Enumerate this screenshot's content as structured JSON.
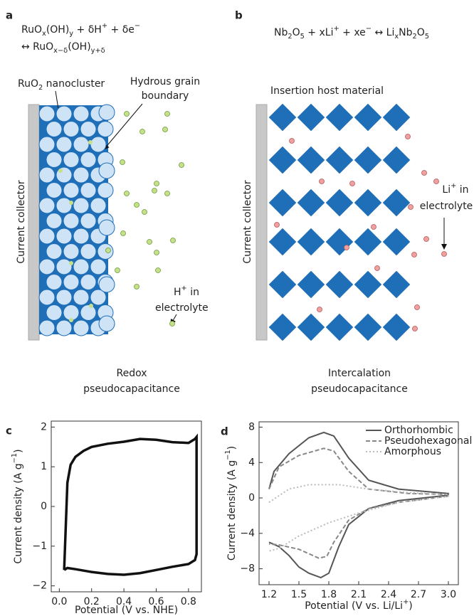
{
  "diagrams": {
    "a": {
      "panel_label": "a",
      "formula": [
        [
          {
            "t": "RuO"
          },
          {
            "sub": "x"
          },
          {
            "t": "(OH)"
          },
          {
            "sub": "y"
          },
          {
            "t": " + δH"
          },
          {
            "sup": "+"
          },
          {
            "t": " + δe"
          },
          {
            "sup": "−"
          }
        ],
        [
          {
            "t": "↔ RuO"
          },
          {
            "sub": "x−δ"
          },
          {
            "t": "(OH)"
          },
          {
            "sub": "y+δ"
          }
        ]
      ],
      "nanocluster_label": [
        {
          "t": "RuO"
        },
        {
          "sub": "2"
        },
        {
          "t": " nanocluster"
        }
      ],
      "grain_label": [
        "Hydrous grain",
        "boundary"
      ],
      "collector_label": "Current collector",
      "ion_label": [
        [
          {
            "t": "H"
          },
          {
            "sup": "+"
          },
          {
            "t": " in"
          }
        ],
        [
          {
            "t": "electrolyte"
          }
        ]
      ],
      "caption": [
        "Redox",
        "pseudocapacitance"
      ]
    },
    "b": {
      "panel_label": "b",
      "formula": [
        [
          {
            "t": "Nb"
          },
          {
            "sub": "2"
          },
          {
            "t": "O"
          },
          {
            "sub": "5"
          },
          {
            "t": " + xLi"
          },
          {
            "sup": "+"
          },
          {
            "t": " + xe"
          },
          {
            "sup": "−"
          },
          {
            "t": " ↔ Li"
          },
          {
            "sub": "x"
          },
          {
            "t": "Nb"
          },
          {
            "sub": "2"
          },
          {
            "t": "O"
          },
          {
            "sub": "5"
          }
        ]
      ],
      "host_label": "Insertion host material",
      "collector_label": "Current collector",
      "ion_label": [
        [
          {
            "t": "Li"
          },
          {
            "sup": "+"
          },
          {
            "t": " in"
          }
        ],
        [
          {
            "t": "electrolyte"
          }
        ]
      ],
      "caption": [
        "Intercalation",
        "pseudocapacitance"
      ]
    }
  },
  "chart_data": [
    {
      "type": "line",
      "panel_label": "c",
      "xlabel": [
        {
          "t": "Potential (V vs. NHE)"
        }
      ],
      "ylabel": [
        {
          "t": "Current density (A g"
        },
        {
          "sup": "−1"
        },
        {
          "t": ")"
        }
      ],
      "xlim": [
        -0.05,
        0.88
      ],
      "ylim": [
        -2.15,
        2.15
      ],
      "xticks": [
        {
          "value": 0,
          "label": "0.0"
        },
        0.2,
        0.4,
        0.6,
        0.8
      ],
      "yticks": [
        {
          "value": -2,
          "label": "−2"
        },
        {
          "value": -1,
          "label": "−1"
        },
        0,
        1,
        2
      ],
      "grid": false,
      "series": [
        {
          "color": "#111111",
          "dash": "solid",
          "x": [
            0.03,
            0.04,
            0.05,
            0.07,
            0.1,
            0.15,
            0.2,
            0.3,
            0.4,
            0.5,
            0.6,
            0.7,
            0.8,
            0.84,
            0.85,
            0.85,
            0.84,
            0.8,
            0.7,
            0.6,
            0.5,
            0.4,
            0.3,
            0.2,
            0.1,
            0.05,
            0.03
          ],
          "values": [
            -1.6,
            -0.5,
            0.6,
            1.05,
            1.25,
            1.4,
            1.5,
            1.58,
            1.63,
            1.7,
            1.68,
            1.62,
            1.6,
            1.7,
            1.75,
            -1.2,
            -1.35,
            -1.45,
            -1.52,
            -1.6,
            -1.68,
            -1.72,
            -1.7,
            -1.65,
            -1.58,
            -1.55,
            -1.6
          ]
        }
      ]
    },
    {
      "type": "line",
      "panel_label": "d",
      "xlabel": [
        {
          "t": "Potential (V vs. Li/Li"
        },
        {
          "sup": "+"
        },
        {
          "t": ")"
        }
      ],
      "ylabel": [
        {
          "t": "Current density (A g"
        },
        {
          "sup": "−1"
        },
        {
          "t": ")"
        }
      ],
      "xlim": [
        1.1,
        3.1
      ],
      "ylim": [
        -9.8,
        8.6
      ],
      "xticks": [
        1.2,
        1.5,
        1.8,
        2.1,
        2.4,
        2.7,
        {
          "value": 3,
          "label": "3.0"
        }
      ],
      "yticks": [
        {
          "value": -8,
          "label": "−8"
        },
        {
          "value": -4,
          "label": "−4"
        },
        0,
        4,
        8
      ],
      "grid": false,
      "legend": "upper right",
      "series": [
        {
          "name": "Orthorhombic",
          "color": "#555555",
          "dash": "solid",
          "x": [
            1.2,
            1.25,
            1.4,
            1.6,
            1.75,
            1.85,
            2.0,
            2.2,
            2.5,
            3.0,
            3.0,
            2.5,
            2.2,
            2.0,
            1.9,
            1.8,
            1.72,
            1.6,
            1.5,
            1.4,
            1.3,
            1.2
          ],
          "values": [
            1,
            3,
            5,
            6.8,
            7.4,
            7,
            4.5,
            2,
            1,
            0.5,
            0.3,
            -0.3,
            -1.2,
            -3,
            -5.5,
            -8.5,
            -9,
            -8.5,
            -7.8,
            -6.5,
            -5.5,
            -5
          ]
        },
        {
          "name": "Pseudohexagonal",
          "color": "#888888",
          "dash": "dashed",
          "x": [
            1.2,
            1.3,
            1.5,
            1.75,
            1.85,
            2.0,
            2.2,
            2.6,
            3.0,
            3.0,
            2.5,
            2.2,
            2.0,
            1.85,
            1.78,
            1.7,
            1.5,
            1.3,
            1.2
          ],
          "values": [
            1,
            3.5,
            4.8,
            5.6,
            5.3,
            3,
            1,
            0.5,
            0.4,
            0.2,
            -0.5,
            -1.2,
            -2.5,
            -5,
            -6.6,
            -6.8,
            -5.8,
            -5.3,
            -5.2
          ]
        },
        {
          "name": "Amorphous",
          "color": "#bbbbbb",
          "dash": "dotted",
          "x": [
            1.2,
            1.4,
            1.6,
            1.9,
            2.2,
            2.6,
            3.0,
            3.0,
            2.5,
            2.1,
            1.8,
            1.5,
            1.3,
            1.2
          ],
          "values": [
            -0.5,
            1,
            1.5,
            1.5,
            1,
            0.6,
            0.4,
            0.2,
            -0.5,
            -1.7,
            -2.8,
            -4.3,
            -5.7,
            -6
          ]
        }
      ]
    }
  ]
}
